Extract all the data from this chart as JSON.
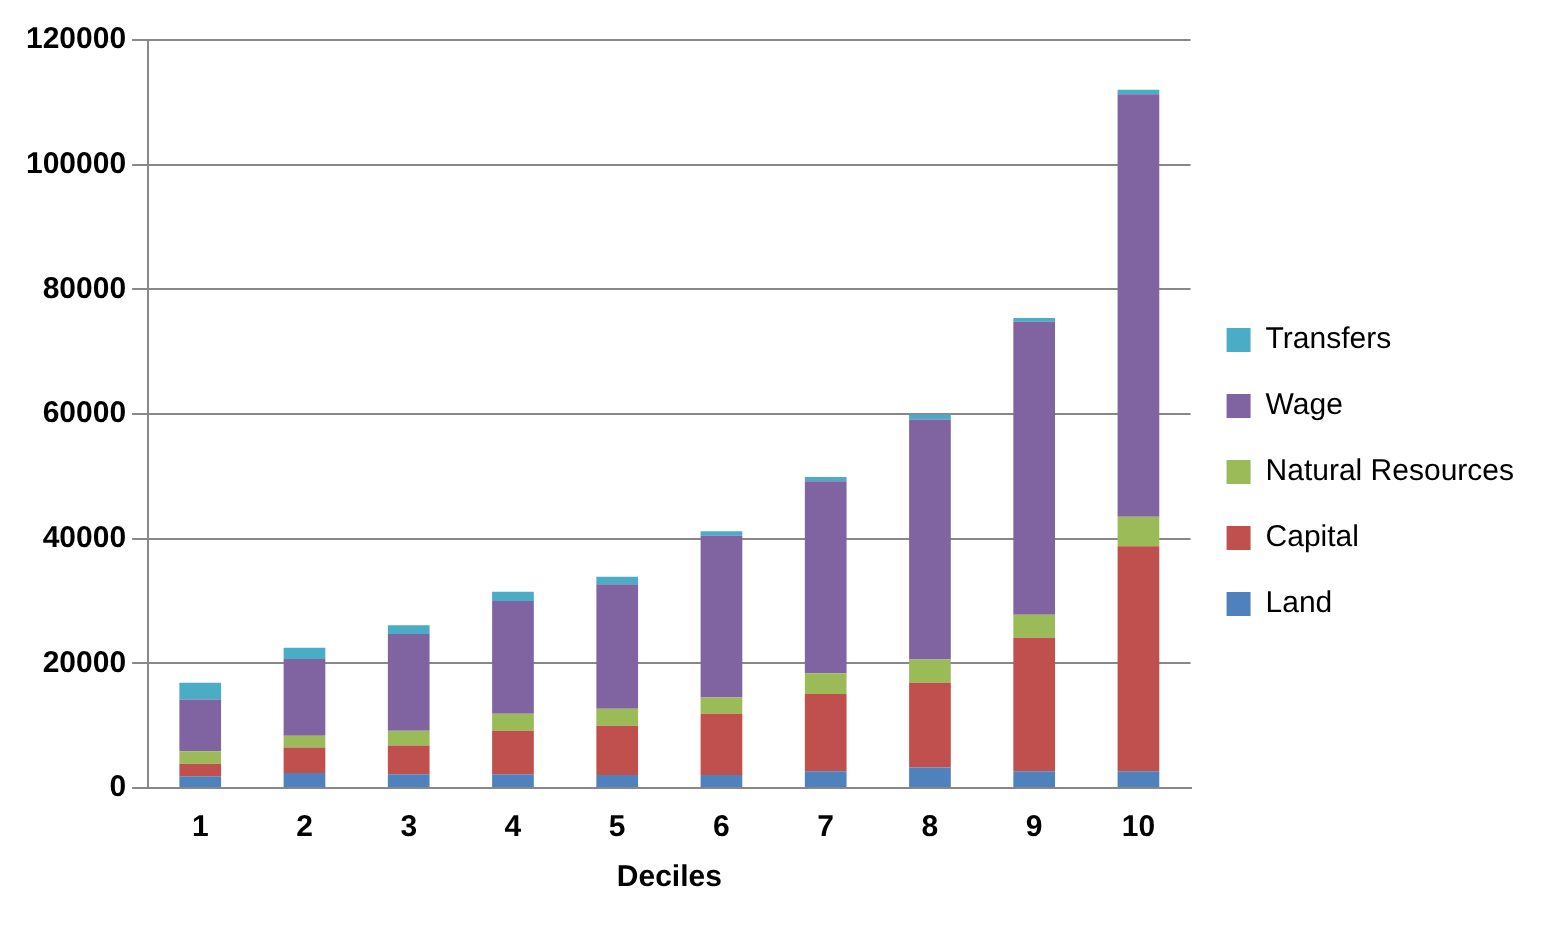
{
  "chart_data": {
    "type": "bar",
    "stacked": true,
    "xlabel": "Deciles",
    "categories": [
      "1",
      "2",
      "3",
      "4",
      "5",
      "6",
      "7",
      "8",
      "9",
      "10"
    ],
    "series": [
      {
        "name": "Land",
        "color": "#4f81bd",
        "values": [
          1900,
          2400,
          2200,
          2200,
          2100,
          2100,
          2700,
          3300,
          2700,
          2700
        ]
      },
      {
        "name": "Capital",
        "color": "#c0504d",
        "values": [
          2000,
          4100,
          4600,
          7000,
          7900,
          9800,
          12400,
          13600,
          21400,
          36100
        ]
      },
      {
        "name": "Natural Resources",
        "color": "#9bbb59",
        "values": [
          2000,
          1900,
          2400,
          2700,
          2700,
          2600,
          3300,
          3700,
          3700,
          4700
        ]
      },
      {
        "name": "Wage",
        "color": "#8064a2",
        "values": [
          8300,
          12300,
          15500,
          18100,
          20000,
          26000,
          30800,
          38500,
          47000,
          67800
        ]
      },
      {
        "name": "Transfers",
        "color": "#4bacc6",
        "values": [
          2700,
          1800,
          1400,
          1500,
          1200,
          700,
          700,
          800,
          600,
          700
        ]
      }
    ],
    "ylim": [
      0,
      120000
    ],
    "yticks": [
      0,
      20000,
      40000,
      60000,
      80000,
      100000,
      120000
    ],
    "grid": "y",
    "legend": "right"
  }
}
